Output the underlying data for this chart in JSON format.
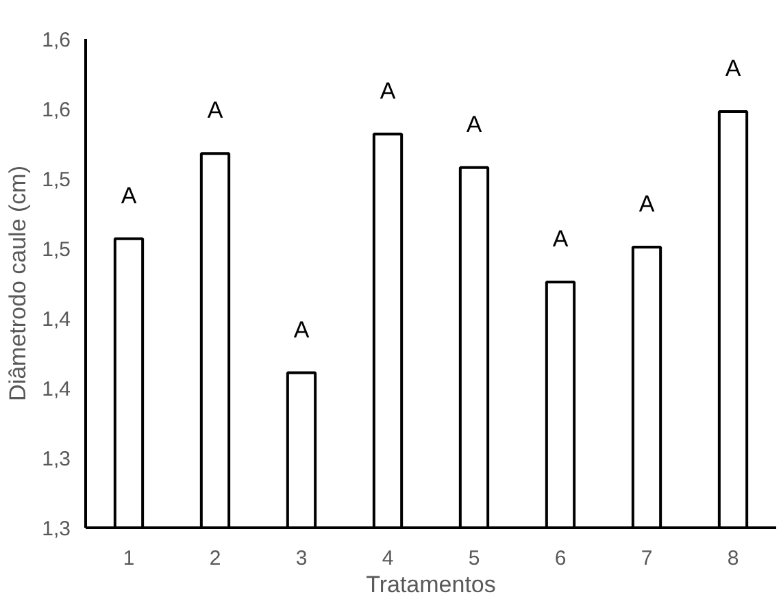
{
  "chart_data": {
    "type": "bar",
    "xlabel": "Tratamentos",
    "ylabel": "Diâmetrodo caule (cm)",
    "categories": [
      "1",
      "2",
      "3",
      "4",
      "5",
      "6",
      "7",
      "8"
    ],
    "values": [
      1.457,
      1.518,
      1.361,
      1.532,
      1.508,
      1.426,
      1.451,
      1.548
    ],
    "color": "#ffffff",
    "ylim": [
      1.25,
      1.6
    ],
    "yticks": [
      {
        "value": 1.25,
        "label": "1,3"
      },
      {
        "value": 1.3,
        "label": "1,3"
      },
      {
        "value": 1.35,
        "label": "1,4"
      },
      {
        "value": 1.4,
        "label": "1,4"
      },
      {
        "value": 1.45,
        "label": "1,5"
      },
      {
        "value": 1.5,
        "label": "1,5"
      },
      {
        "value": 1.55,
        "label": "1,6"
      },
      {
        "value": 1.6,
        "label": "1,6"
      }
    ],
    "annotations": [
      "A",
      "A",
      "A",
      "A",
      "A",
      "A",
      "A",
      "A"
    ],
    "grid": false
  }
}
